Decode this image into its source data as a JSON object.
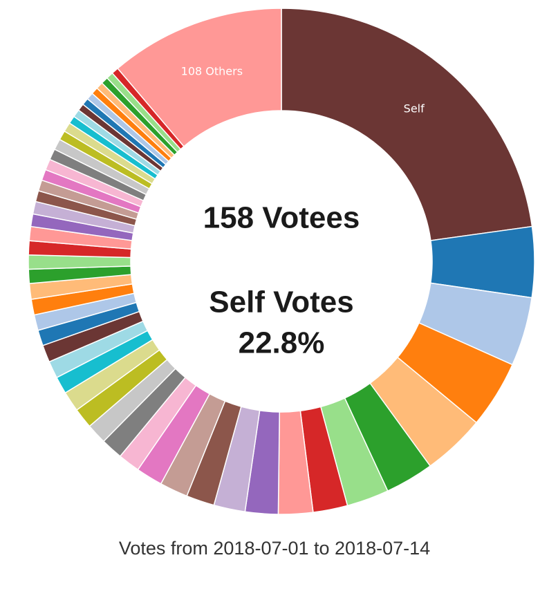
{
  "chart_data": {
    "type": "donut",
    "center_title": "158 Votees",
    "center_subtitle": "Self Votes",
    "center_value": "22.8%",
    "caption": "Votes from 2018-07-01 to 2018-07-14",
    "categories": [
      "Self",
      null,
      null,
      null,
      null,
      null,
      null,
      null,
      null,
      null,
      null,
      null,
      null,
      null,
      null,
      null,
      null,
      null,
      null,
      null,
      null,
      null,
      null,
      null,
      null,
      null,
      null,
      null,
      null,
      null,
      null,
      null,
      null,
      null,
      null,
      null,
      null,
      null,
      null,
      null,
      null,
      null,
      null,
      null,
      null,
      null,
      null,
      null,
      null,
      null,
      "108 Others"
    ],
    "values": [
      22.8,
      4.5,
      4.4,
      4.3,
      4.0,
      3.1,
      2.7,
      2.2,
      2.2,
      2.1,
      2.0,
      1.8,
      1.8,
      1.7,
      1.4,
      1.4,
      1.3,
      1.3,
      1.3,
      1.1,
      1.1,
      1.1,
      1.0,
      1.0,
      1.0,
      1.0,
      0.9,
      0.9,
      0.9,
      0.9,
      0.8,
      0.8,
      0.7,
      0.7,
      0.7,
      0.7,
      0.7,
      0.7,
      0.6,
      0.6,
      0.5,
      0.5,
      0.45,
      0.45,
      0.45,
      0.45,
      0.45,
      0.45,
      0.45,
      0.45,
      11.2
    ],
    "colors": [
      "#6b3634",
      "#1f77b4",
      "#aec7e8",
      "#ff7f0e",
      "#ffbb78",
      "#2ca02c",
      "#98df8a",
      "#d62728",
      "#ff9896",
      "#9467bd",
      "#c5b0d5",
      "#8c564b",
      "#c49c94",
      "#e377c2",
      "#f7b6d2",
      "#7f7f7f",
      "#c7c7c7",
      "#bcbd22",
      "#dbdb8d",
      "#17becf",
      "#9edae5",
      "#6b3634",
      "#1f77b4",
      "#aec7e8",
      "#ff7f0e",
      "#ffbb78",
      "#2ca02c",
      "#98df8a",
      "#d62728",
      "#ff9896",
      "#9467bd",
      "#c5b0d5",
      "#8c564b",
      "#c49c94",
      "#e377c2",
      "#f7b6d2",
      "#7f7f7f",
      "#c7c7c7",
      "#bcbd22",
      "#dbdb8d",
      "#17becf",
      "#9edae5",
      "#6b3634",
      "#1f77b4",
      "#aec7e8",
      "#ff7f0e",
      "#ffbb78",
      "#2ca02c",
      "#98df8a",
      "#d62728",
      "#ff9896"
    ]
  }
}
